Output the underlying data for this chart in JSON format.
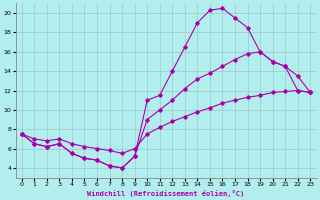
{
  "background_color": "#b2eeee",
  "grid_color": "#9ecece",
  "line_color": "#aa00aa",
  "xlabel": "Windchill (Refroidissement éolien,°C)",
  "xlim": [
    -0.5,
    23.5
  ],
  "ylim": [
    3.0,
    21.0
  ],
  "yticks": [
    4,
    6,
    8,
    10,
    12,
    14,
    16,
    18,
    20
  ],
  "xticks": [
    0,
    1,
    2,
    3,
    4,
    5,
    6,
    7,
    8,
    9,
    10,
    11,
    12,
    13,
    14,
    15,
    16,
    17,
    18,
    19,
    20,
    21,
    22,
    23
  ],
  "line1_x": [
    0,
    1,
    2,
    3,
    4,
    5,
    6,
    7,
    8,
    9,
    10,
    11,
    12,
    13,
    14,
    15,
    16,
    17,
    18,
    19,
    20,
    21,
    22,
    23
  ],
  "line1_y": [
    7.5,
    6.5,
    6.2,
    6.5,
    5.5,
    5.0,
    4.8,
    4.2,
    4.0,
    5.2,
    11.0,
    11.5,
    14.0,
    16.5,
    19.0,
    20.3,
    20.5,
    19.5,
    18.5,
    16.0,
    15.0,
    14.5,
    13.5,
    11.8
  ],
  "line2_x": [
    0,
    1,
    2,
    3,
    4,
    5,
    6,
    7,
    8,
    9,
    10,
    11,
    12,
    13,
    14,
    15,
    16,
    17,
    18,
    19,
    20,
    21,
    22,
    23
  ],
  "line2_y": [
    7.5,
    6.5,
    6.2,
    6.5,
    5.5,
    5.0,
    4.8,
    4.2,
    4.0,
    5.2,
    9.0,
    10.0,
    11.0,
    12.2,
    13.2,
    13.8,
    14.5,
    15.2,
    15.8,
    16.0,
    15.0,
    14.5,
    12.0,
    11.8
  ],
  "line3_x": [
    0,
    1,
    2,
    3,
    4,
    5,
    6,
    7,
    8,
    9,
    10,
    11,
    12,
    13,
    14,
    15,
    16,
    17,
    18,
    19,
    20,
    21,
    22,
    23
  ],
  "line3_y": [
    7.5,
    7.0,
    6.8,
    7.0,
    6.5,
    6.2,
    6.0,
    5.8,
    5.5,
    6.0,
    7.5,
    8.2,
    8.8,
    9.3,
    9.8,
    10.2,
    10.7,
    11.0,
    11.3,
    11.5,
    11.8,
    11.9,
    12.0,
    11.8
  ]
}
